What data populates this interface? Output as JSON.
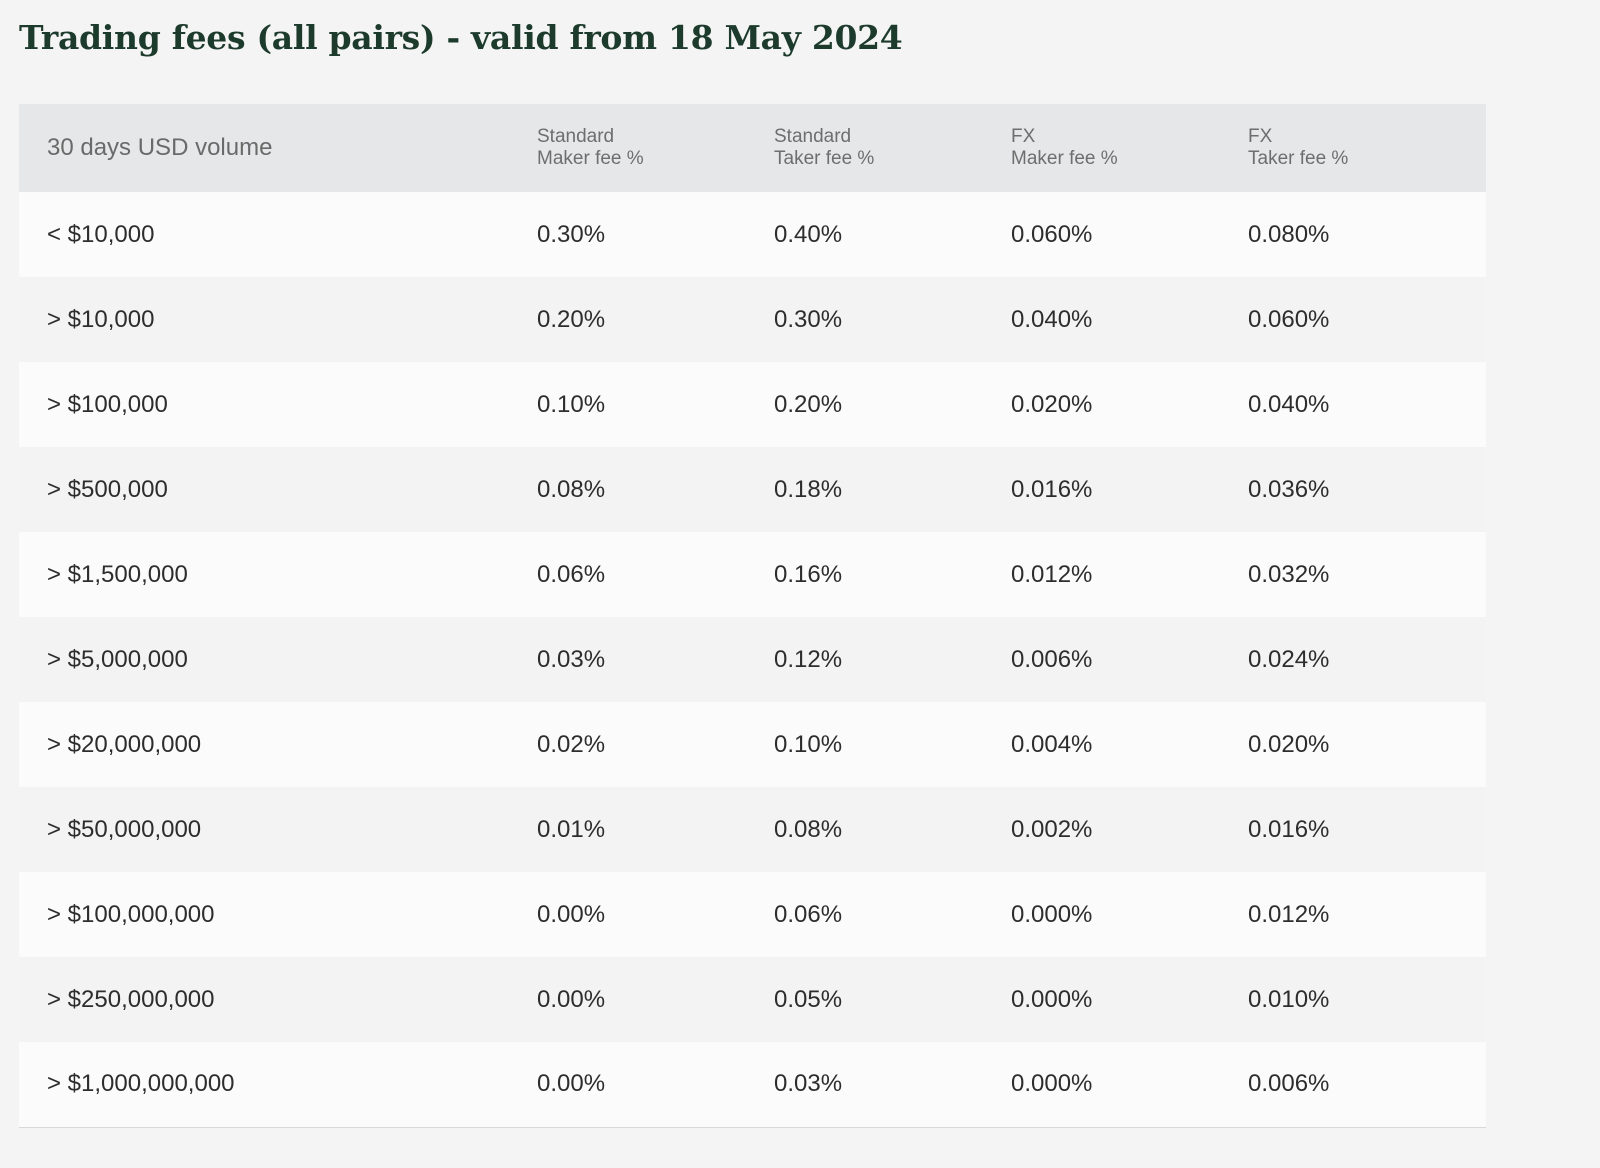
{
  "title": "Trading fees (all pairs) - valid from 18 May 2024",
  "table": {
    "headers": [
      {
        "line1": "30 days USD volume",
        "line2": ""
      },
      {
        "line1": "Standard",
        "line2": "Maker fee %"
      },
      {
        "line1": "Standard",
        "line2": "Taker fee %"
      },
      {
        "line1": "FX",
        "line2": "Maker fee %"
      },
      {
        "line1": "FX",
        "line2": "Taker fee %"
      }
    ],
    "rows": [
      [
        "< $10,000",
        "0.30%",
        "0.40%",
        "0.060%",
        "0.080%"
      ],
      [
        "> $10,000",
        "0.20%",
        "0.30%",
        "0.040%",
        "0.060%"
      ],
      [
        "> $100,000",
        "0.10%",
        "0.20%",
        "0.020%",
        "0.040%"
      ],
      [
        "> $500,000",
        "0.08%",
        "0.18%",
        "0.016%",
        "0.036%"
      ],
      [
        "> $1,500,000",
        "0.06%",
        "0.16%",
        "0.012%",
        "0.032%"
      ],
      [
        "> $5,000,000",
        "0.03%",
        "0.12%",
        "0.006%",
        "0.024%"
      ],
      [
        "> $20,000,000",
        "0.02%",
        "0.10%",
        "0.004%",
        "0.020%"
      ],
      [
        "> $50,000,000",
        "0.01%",
        "0.08%",
        "0.002%",
        "0.016%"
      ],
      [
        "> $100,000,000",
        "0.00%",
        "0.06%",
        "0.000%",
        "0.012%"
      ],
      [
        "> $250,000,000",
        "0.00%",
        "0.05%",
        "0.000%",
        "0.010%"
      ],
      [
        "> $1,000,000,000",
        "0.00%",
        "0.03%",
        "0.000%",
        "0.006%"
      ]
    ]
  },
  "colors": {
    "title": "#1d3b2c",
    "header_bg": "#e6e7e8",
    "row_odd": "#fbfbfb",
    "row_even": "#f3f3f3"
  }
}
